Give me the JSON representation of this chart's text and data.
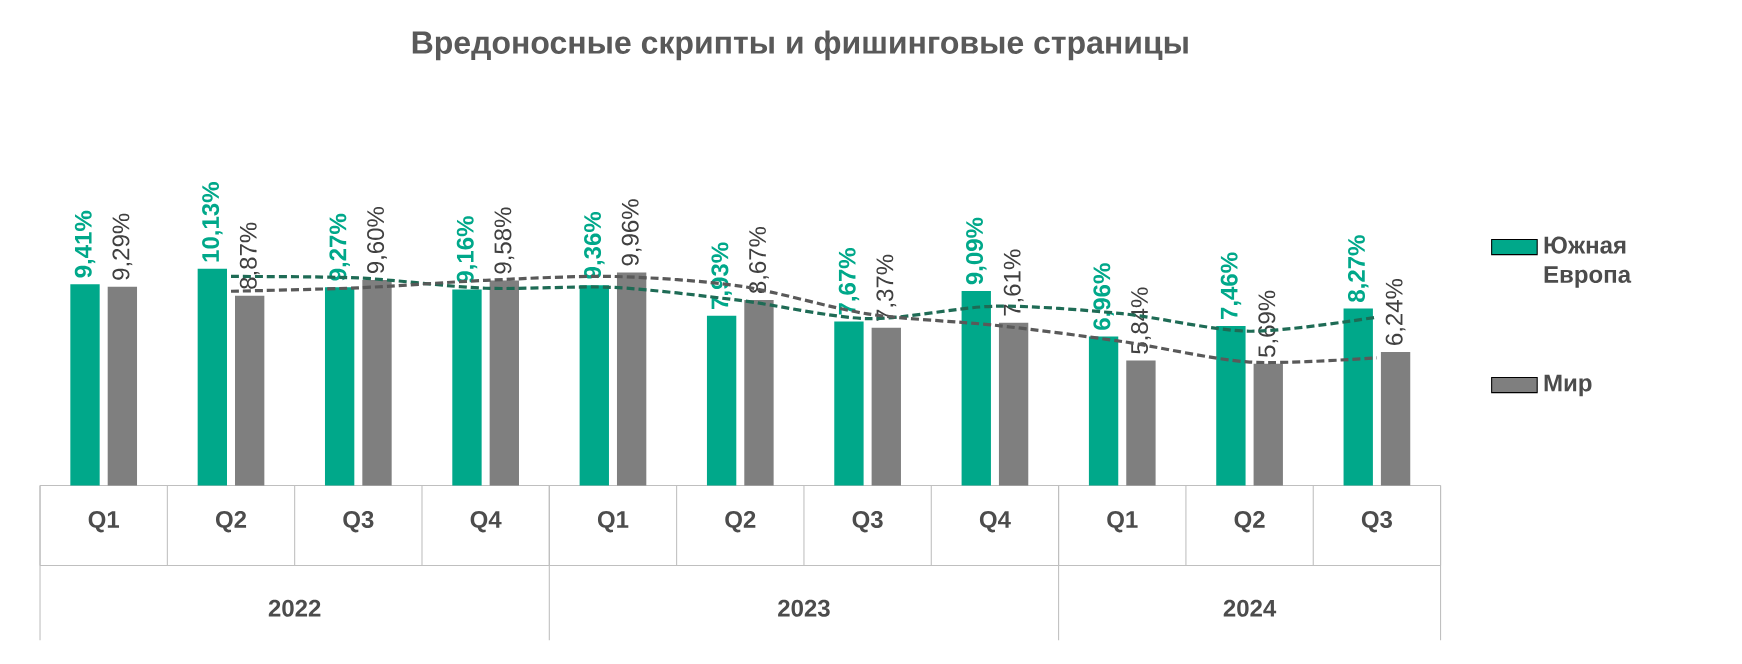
{
  "chart_data": {
    "type": "bar",
    "title": "Вредоносные скрипты и фишинговые страницы",
    "categories": [
      "Q1",
      "Q2",
      "Q3",
      "Q4",
      "Q1",
      "Q2",
      "Q3",
      "Q4",
      "Q1",
      "Q2",
      "Q3"
    ],
    "annotations": [
      "2022",
      "2023",
      "2024"
    ],
    "series": [
      {
        "name": "Южная Европа",
        "color": "#00a88a",
        "values": [
          9.41,
          10.13,
          9.27,
          9.16,
          9.36,
          7.93,
          7.67,
          9.09,
          6.96,
          7.46,
          8.27
        ],
        "value_labels": [
          "9,41%",
          "10,13%",
          "9,27%",
          "9,16%",
          "9,36%",
          "7,93%",
          "7,67%",
          "9,09%",
          "6,96%",
          "7,46%",
          "8,27%"
        ]
      },
      {
        "name": "Мир",
        "color": "#7f7f7f",
        "values": [
          9.29,
          8.87,
          9.6,
          9.58,
          9.96,
          8.67,
          7.37,
          7.61,
          5.84,
          5.69,
          6.24
        ],
        "value_labels": [
          "9,29%",
          "8,87%",
          "9,60%",
          "9,58%",
          "9,96%",
          "8,67%",
          "7,37%",
          "7,61%",
          "5,84%",
          "5,69%",
          "6,24%"
        ]
      },
      {
        "type": "line",
        "line_style": "dashed",
        "color": "#1e6b55",
        "values": [
          null,
          9.77,
          9.7,
          9.22,
          9.26,
          8.65,
          7.8,
          8.38,
          8.03,
          7.21,
          7.87
        ]
      },
      {
        "type": "line",
        "line_style": "dashed",
        "color": "#595959",
        "values": [
          null,
          9.08,
          9.24,
          9.59,
          9.77,
          9.32,
          8.02,
          7.49,
          6.73,
          5.77,
          5.97
        ]
      }
    ],
    "legend": "right",
    "marker": "none"
  }
}
